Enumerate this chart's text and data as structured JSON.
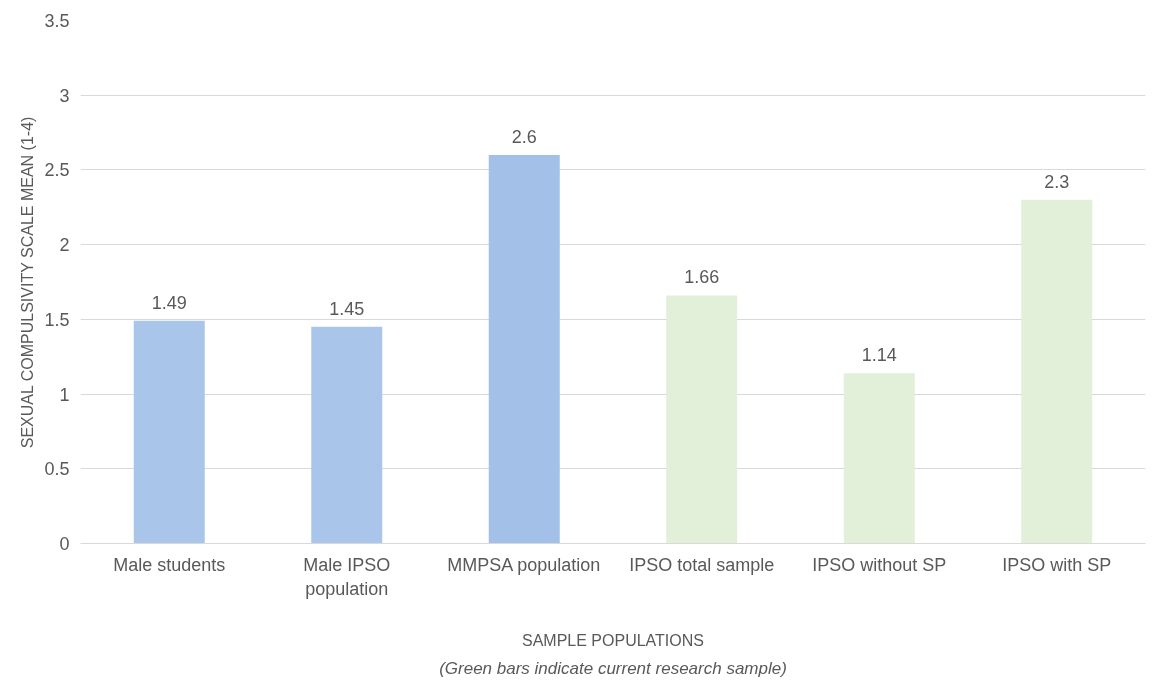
{
  "chart_data": {
    "type": "bar",
    "ylabel": "SEXUAL COMPULSIVITY SCALE MEAN (1-4)",
    "xlabel": "SAMPLE POPULATIONS",
    "annotations": [
      "(Green bars indicate current research sample)"
    ],
    "categories": [
      "Male students",
      "Male IPSO population",
      "MMPSA population",
      "IPSO total sample",
      "IPSO without SP",
      "IPSO with SP"
    ],
    "values": [
      1.49,
      1.45,
      2.6,
      1.66,
      1.14,
      2.3
    ],
    "colors": [
      "#a9c6ea",
      "#a9c6ea",
      "#a2c0e8",
      "#e2efd9",
      "#e2efd9",
      "#e2efd9"
    ],
    "ylim": [
      0,
      3.5
    ],
    "yticks": [
      0,
      0.5,
      1,
      1.5,
      2,
      2.5,
      3,
      3.5
    ],
    "grid": "y",
    "data_labels": true
  }
}
